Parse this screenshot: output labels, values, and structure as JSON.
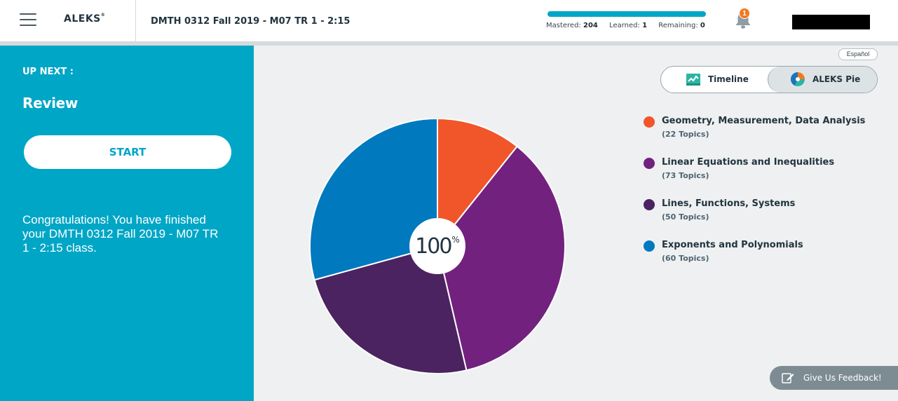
{
  "header": {
    "logo": "ALEKS",
    "logo_reg": "®",
    "class_title": "DMTH 0312 Fall 2019 - M07 TR 1 - 2:15",
    "progress": {
      "fraction": 1.0,
      "mastered_label": "Mastered:",
      "mastered_value": "204",
      "learned_label": "Learned:",
      "learned_value": "1",
      "remaining_label": "Remaining:",
      "remaining_value": "0"
    },
    "notifications_count": "1",
    "icons": {
      "menu": "hamburger-menu-icon",
      "bell": "bell-icon"
    }
  },
  "left_panel": {
    "up_next_label": "UP NEXT :",
    "next_item": "Review",
    "start_label": "START",
    "message": "Congratulations! You have finished your DMTH 0312 Fall 2019 - M07 TR 1 - 2:15 class."
  },
  "main": {
    "language_link": "Español",
    "toggle": {
      "timeline_label": "Timeline",
      "pie_label": "ALEKS Pie",
      "active": "ALEKS Pie"
    },
    "pie_center": {
      "value": "100",
      "unit": "%"
    },
    "feedback_label": "Give Us Feedback!"
  },
  "chart_data": {
    "type": "pie",
    "title": "",
    "center_label": "100%",
    "slices": [
      {
        "label": "Geometry, Measurement, Data Analysis",
        "topics_label": "(22 Topics)",
        "value": 22,
        "color": "#f0562a"
      },
      {
        "label": "Linear Equations and Inequalities",
        "topics_label": "(73 Topics)",
        "value": 73,
        "color": "#73217e"
      },
      {
        "label": "Lines, Functions, Systems",
        "topics_label": "(50 Topics)",
        "value": 50,
        "color": "#4b2360"
      },
      {
        "label": "Exponents and Polynomials",
        "topics_label": "(60 Topics)",
        "value": 60,
        "color": "#0079bf"
      }
    ],
    "start_angle": "12 o'clock, clockwise",
    "legend_placement": "right"
  },
  "colors": {
    "brand_teal": "#00a6c6",
    "badge_orange": "#f07a1e",
    "text_dark": "#21343f"
  }
}
